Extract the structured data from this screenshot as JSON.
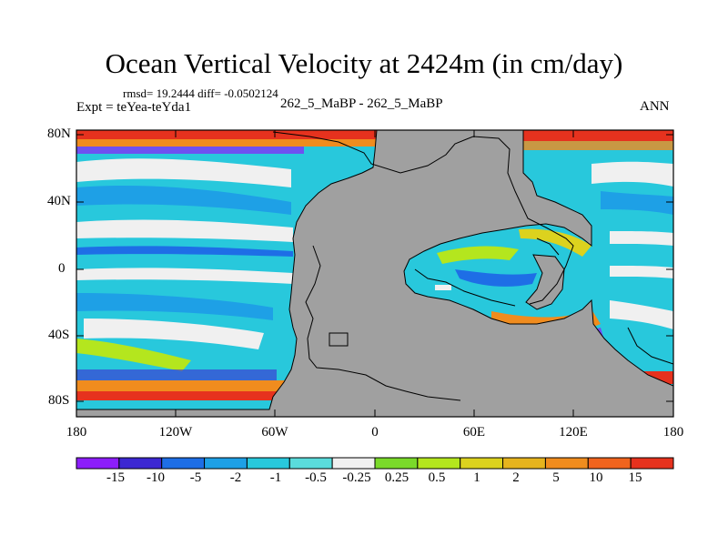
{
  "title": "Ocean Vertical Velocity at 2424m (in cm/day)",
  "stats": "rmsd= 19.2444 diff= -0.0502124",
  "experiment": "Expt = teYea-teYda1",
  "cases": "262_5_MaBP - 262_5_MaBP",
  "season": "ANN",
  "lat_labels": [
    "80N",
    "40N",
    "0",
    "40S",
    "80S"
  ],
  "lon_labels": [
    "180",
    "120W",
    "60W",
    "0",
    "60E",
    "120E",
    "180"
  ],
  "colorbar": {
    "levels": [
      "-15",
      "-10",
      "-5",
      "-2",
      "-1",
      "-0.5",
      "-0.25",
      "0.25",
      "0.5",
      "1",
      "2",
      "5",
      "10",
      "15"
    ],
    "colors": [
      "#8c1efa",
      "#3c28d2",
      "#1e6ee6",
      "#1ea0e6",
      "#28c8dc",
      "#5adcdc",
      "#f0f0f0",
      "#7ada2a",
      "#b4e61e",
      "#dcd21e",
      "#e6b41e",
      "#f08c1e",
      "#f0641e",
      "#e6321e"
    ]
  },
  "colors": {
    "land": "#a0a0a0",
    "coast": "#000000"
  }
}
